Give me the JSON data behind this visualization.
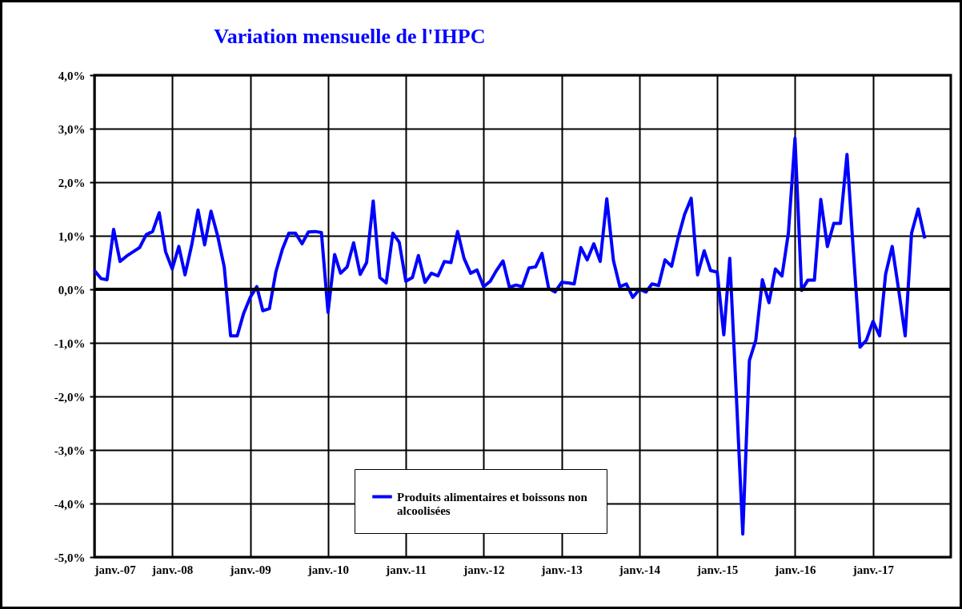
{
  "chart_data": {
    "type": "line",
    "title": "Variation mensuelle de l'IHPC",
    "x": [
      "2007-01",
      "2007-02",
      "2007-03",
      "2007-04",
      "2007-05",
      "2007-06",
      "2007-07",
      "2007-08",
      "2007-09",
      "2007-10",
      "2007-11",
      "2007-12",
      "2008-01",
      "2008-02",
      "2008-03",
      "2008-04",
      "2008-05",
      "2008-06",
      "2008-07",
      "2008-08",
      "2008-09",
      "2008-10",
      "2008-11",
      "2008-12",
      "2009-01",
      "2009-02",
      "2009-03",
      "2009-04",
      "2009-05",
      "2009-06",
      "2009-07",
      "2009-08",
      "2009-09",
      "2009-10",
      "2009-11",
      "2009-12",
      "2010-01",
      "2010-02",
      "2010-03",
      "2010-04",
      "2010-05",
      "2010-06",
      "2010-07",
      "2010-08",
      "2010-09",
      "2010-10",
      "2010-11",
      "2010-12",
      "2011-01",
      "2011-02",
      "2011-03",
      "2011-04",
      "2011-05",
      "2011-06",
      "2011-07",
      "2011-08",
      "2011-09",
      "2011-10",
      "2011-11",
      "2011-12",
      "2012-01",
      "2012-02",
      "2012-03",
      "2012-04",
      "2012-05",
      "2012-06",
      "2012-07",
      "2012-08",
      "2012-09",
      "2012-10",
      "2012-11",
      "2012-12",
      "2013-01",
      "2013-02",
      "2013-03",
      "2013-04",
      "2013-05",
      "2013-06",
      "2013-07",
      "2013-08",
      "2013-09",
      "2013-10",
      "2013-11",
      "2013-12",
      "2014-01",
      "2014-02",
      "2014-03",
      "2014-04",
      "2014-05",
      "2014-06",
      "2014-07",
      "2014-08",
      "2014-09",
      "2014-10",
      "2014-11",
      "2014-12",
      "2015-01",
      "2015-02",
      "2015-03",
      "2015-04",
      "2015-05",
      "2015-06",
      "2015-07",
      "2015-08",
      "2015-09",
      "2015-10",
      "2015-11",
      "2015-12",
      "2016-01",
      "2016-02",
      "2016-03",
      "2016-04",
      "2016-05",
      "2016-06",
      "2016-07",
      "2016-08",
      "2016-09",
      "2016-10",
      "2016-11",
      "2016-12",
      "2017-01",
      "2017-02",
      "2017-03",
      "2017-04",
      "2017-05",
      "2017-06",
      "2017-07",
      "2017-08",
      "2017-09"
    ],
    "series": [
      {
        "name": "Produits alimentaires  et boissons non alcoolisées",
        "color": "#0000ff",
        "values": [
          0.35,
          0.2,
          0.18,
          1.12,
          0.52,
          0.62,
          0.7,
          0.78,
          1.02,
          1.08,
          1.43,
          0.7,
          0.38,
          0.8,
          0.27,
          0.82,
          1.48,
          0.83,
          1.46,
          1.0,
          0.42,
          -0.87,
          -0.87,
          -0.45,
          -0.15,
          0.05,
          -0.4,
          -0.36,
          0.32,
          0.75,
          1.05,
          1.05,
          0.85,
          1.07,
          1.08,
          1.06,
          -0.43,
          0.65,
          0.3,
          0.42,
          0.87,
          0.28,
          0.5,
          1.65,
          0.22,
          0.12,
          1.05,
          0.88,
          0.15,
          0.22,
          0.63,
          0.13,
          0.3,
          0.25,
          0.52,
          0.5,
          1.08,
          0.58,
          0.3,
          0.36,
          0.05,
          0.15,
          0.35,
          0.53,
          0.04,
          0.08,
          0.05,
          0.4,
          0.42,
          0.67,
          0.02,
          -0.05,
          0.13,
          0.12,
          0.1,
          0.78,
          0.55,
          0.85,
          0.52,
          1.69,
          0.54,
          0.05,
          0.1,
          -0.15,
          0.0,
          -0.05,
          0.1,
          0.07,
          0.55,
          0.43,
          0.95,
          1.4,
          1.7,
          0.27,
          0.72,
          0.35,
          0.32,
          -0.85,
          0.58,
          -2.0,
          -4.57,
          -1.33,
          -0.95,
          0.18,
          -0.25,
          0.38,
          0.25,
          1.05,
          2.82,
          -0.02,
          0.17,
          0.17,
          1.68,
          0.8,
          1.23,
          1.23,
          2.52,
          0.7,
          -1.08,
          -0.95,
          -0.6,
          -0.87,
          0.28,
          0.8,
          0.0,
          -0.87,
          1.05,
          1.5,
          0.95
        ]
      }
    ],
    "xlim": [
      "2007-01",
      "2018-01"
    ],
    "xticks": [
      {
        "value": "2007-01",
        "label": "janv.-07"
      },
      {
        "value": "2008-01",
        "label": "janv.-08"
      },
      {
        "value": "2009-01",
        "label": "janv.-09"
      },
      {
        "value": "2010-01",
        "label": "janv.-10"
      },
      {
        "value": "2011-01",
        "label": "janv.-11"
      },
      {
        "value": "2012-01",
        "label": "janv.-12"
      },
      {
        "value": "2013-01",
        "label": "janv.-13"
      },
      {
        "value": "2014-01",
        "label": "janv.-14"
      },
      {
        "value": "2015-01",
        "label": "janv.-15"
      },
      {
        "value": "2016-01",
        "label": "janv.-16"
      },
      {
        "value": "2017-01",
        "label": "janv.-17"
      }
    ],
    "ylim": [
      -5,
      4
    ],
    "yticks": [
      {
        "value": -5,
        "label": "-5,0%"
      },
      {
        "value": -4,
        "label": "-4,0%"
      },
      {
        "value": -3,
        "label": "-3,0%"
      },
      {
        "value": -2,
        "label": "-2,0%"
      },
      {
        "value": -1,
        "label": "-1,0%"
      },
      {
        "value": 0,
        "label": "0,0%"
      },
      {
        "value": 1,
        "label": "1,0%"
      },
      {
        "value": 2,
        "label": "2,0%"
      },
      {
        "value": 3,
        "label": "3,0%"
      },
      {
        "value": 4,
        "label": "4,0%"
      }
    ],
    "ref_lines": [
      {
        "axis": "y",
        "value": 0,
        "color": "#000000"
      }
    ],
    "grid": true,
    "legend": "bottom",
    "line_style": "solid"
  }
}
